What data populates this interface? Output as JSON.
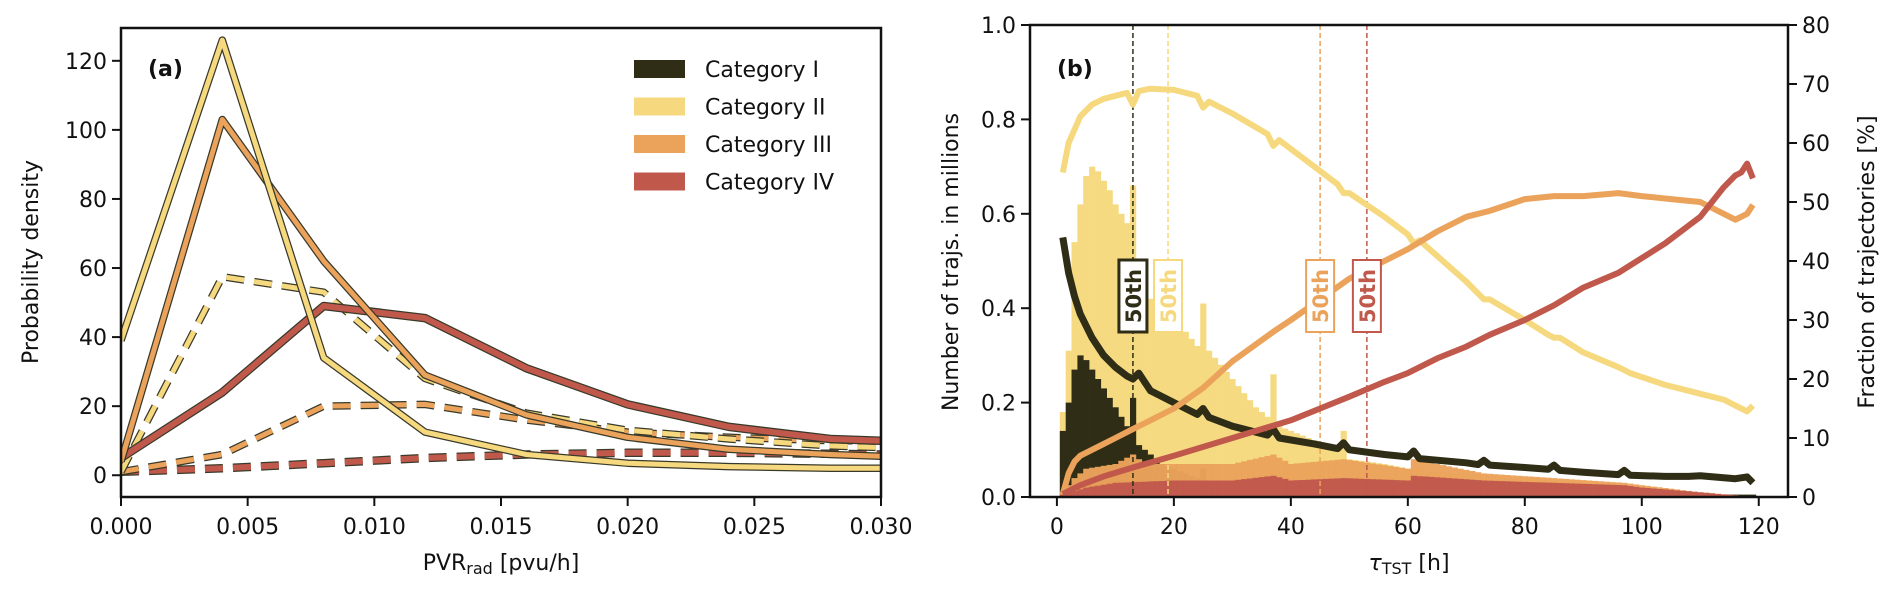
{
  "colors": {
    "cat1": "#2f2d15",
    "cat2": "#f6d97e",
    "cat3": "#eba35c",
    "cat4": "#c0594c",
    "axis": "#111111"
  },
  "chart_data": [
    {
      "panel": "a",
      "type": "line",
      "panel_label": "(a)",
      "xlabel_main": "PVR",
      "xlabel_sub": "rad",
      "xlabel_unit": " [pvu/h]",
      "ylabel": "Probability density",
      "xlim": [
        0.0,
        0.03
      ],
      "ylim": [
        -6.3,
        129.5
      ],
      "xticks": [
        0.0,
        0.005,
        0.01,
        0.015,
        0.02,
        0.025,
        0.03
      ],
      "xtick_labels": [
        "0.000",
        "0.005",
        "0.010",
        "0.015",
        "0.020",
        "0.025",
        "0.030"
      ],
      "yticks": [
        0,
        20,
        40,
        60,
        80,
        100,
        120
      ],
      "ytick_labels": [
        "0",
        "20",
        "40",
        "60",
        "80",
        "100",
        "120"
      ],
      "grid": false,
      "legend": {
        "placement": "top-right",
        "entries": [
          {
            "label": "Category I",
            "color_key": "cat1"
          },
          {
            "label": "Category II",
            "color_key": "cat2"
          },
          {
            "label": "Category III",
            "color_key": "cat3"
          },
          {
            "label": "Category IV",
            "color_key": "cat4"
          }
        ]
      },
      "series": [
        {
          "name": "Category II (solid)",
          "color_key": "cat2",
          "style": "solid",
          "x": [
            0.0,
            0.004,
            0.008,
            0.012,
            0.016,
            0.02,
            0.024,
            0.028,
            0.03
          ],
          "y": [
            39,
            126,
            34,
            12.5,
            6,
            3.5,
            2.5,
            2,
            2
          ]
        },
        {
          "name": "Category III (solid)",
          "color_key": "cat3",
          "style": "solid",
          "x": [
            0.0,
            0.004,
            0.008,
            0.012,
            0.016,
            0.02,
            0.024,
            0.028,
            0.03
          ],
          "y": [
            4,
            103,
            62,
            29,
            17.5,
            11,
            7.5,
            6,
            5.5
          ]
        },
        {
          "name": "Category IV (solid)",
          "color_key": "cat4",
          "style": "solid",
          "x": [
            0.0,
            0.004,
            0.008,
            0.012,
            0.016,
            0.02,
            0.024,
            0.028,
            0.03
          ],
          "y": [
            5,
            24,
            49,
            45.5,
            31,
            20.5,
            14,
            10.5,
            10
          ]
        },
        {
          "name": "Category II (dashed)",
          "color_key": "cat2",
          "style": "dashed",
          "x": [
            0.0,
            0.004,
            0.008,
            0.012,
            0.016,
            0.02,
            0.024,
            0.028,
            0.03
          ],
          "y": [
            1,
            57.5,
            53,
            28,
            18,
            13,
            10.5,
            8.5,
            8
          ]
        },
        {
          "name": "Category III (dashed)",
          "color_key": "cat3",
          "style": "dashed",
          "x": [
            0.0,
            0.004,
            0.008,
            0.012,
            0.016,
            0.02,
            0.024,
            0.028,
            0.03
          ],
          "y": [
            1,
            6,
            20,
            20.5,
            16,
            12.5,
            11,
            10,
            10
          ]
        },
        {
          "name": "Category IV (dashed)",
          "color_key": "cat4",
          "style": "dashed",
          "x": [
            0.0,
            0.004,
            0.008,
            0.012,
            0.016,
            0.02,
            0.024,
            0.028,
            0.03
          ],
          "y": [
            1,
            2,
            3.5,
            5,
            6,
            6.5,
            6.5,
            6.2,
            6
          ]
        }
      ]
    },
    {
      "panel": "b",
      "type": "bar+line",
      "panel_label": "(b)",
      "xlabel_main": "τ",
      "xlabel_sub": "TST",
      "xlabel_unit": " [h]",
      "ylabel_left": "Number of trajs. in millions",
      "ylabel_right": "Fraction of trajectories [%]",
      "xlim": [
        -4.6,
        125
      ],
      "ylim_left": [
        0.0,
        1.0
      ],
      "ylim_right": [
        0,
        80
      ],
      "xticks": [
        0,
        20,
        40,
        60,
        80,
        100,
        120
      ],
      "xtick_labels": [
        "0",
        "20",
        "40",
        "60",
        "80",
        "100",
        "120"
      ],
      "yticks_left": [
        0.0,
        0.2,
        0.4,
        0.6,
        0.8,
        1.0
      ],
      "ytick_labels_left": [
        "0.0",
        "0.2",
        "0.4",
        "0.6",
        "0.8",
        "1.0"
      ],
      "yticks_right": [
        0,
        10,
        20,
        30,
        40,
        50,
        60,
        70,
        80
      ],
      "ytick_labels_right": [
        "0",
        "10",
        "20",
        "30",
        "40",
        "50",
        "60",
        "70",
        "80"
      ],
      "grid": false,
      "percentile_markers": [
        {
          "label": "50th",
          "x": 13,
          "color_key": "cat1"
        },
        {
          "label": "50th",
          "x": 19,
          "color_key": "cat2"
        },
        {
          "label": "50th",
          "x": 45,
          "color_key": "cat3"
        },
        {
          "label": "50th",
          "x": 53,
          "color_key": "cat4"
        }
      ],
      "histograms": {
        "bin_width_h": 1,
        "bin_start_h": 1,
        "cat2_total_millions_anchor": {
          "x": [
            1,
            2,
            3,
            4,
            5,
            6,
            7,
            8,
            9,
            10,
            11,
            12,
            13,
            14,
            15,
            16,
            17,
            18,
            19,
            20,
            22,
            24,
            25,
            26,
            28,
            30,
            32,
            34,
            36,
            37,
            38,
            40,
            44,
            48,
            49,
            50,
            56,
            60,
            70,
            80,
            90,
            100,
            110,
            119
          ],
          "y": [
            0.18,
            0.31,
            0.54,
            0.62,
            0.68,
            0.7,
            0.69,
            0.67,
            0.65,
            0.62,
            0.6,
            0.58,
            0.66,
            0.5,
            0.44,
            0.42,
            0.41,
            0.4,
            0.39,
            0.38,
            0.35,
            0.32,
            0.41,
            0.31,
            0.28,
            0.25,
            0.22,
            0.19,
            0.17,
            0.26,
            0.15,
            0.14,
            0.12,
            0.1,
            0.14,
            0.08,
            0.07,
            0.06,
            0.05,
            0.04,
            0.03,
            0.02,
            0.01,
            0.0
          ]
        },
        "cat1_millions_anchor": {
          "x": [
            1,
            2,
            3,
            4,
            5,
            6,
            7,
            8,
            9,
            10,
            11,
            12,
            13,
            14,
            15,
            16,
            17,
            18,
            20,
            22,
            24,
            25,
            26,
            30,
            40
          ],
          "y": [
            0.14,
            0.2,
            0.27,
            0.3,
            0.29,
            0.27,
            0.25,
            0.23,
            0.21,
            0.19,
            0.17,
            0.15,
            0.21,
            0.11,
            0.1,
            0.09,
            0.08,
            0.07,
            0.06,
            0.05,
            0.04,
            0.06,
            0.03,
            0.02,
            0.005
          ]
        },
        "cat3_millions_anchor": {
          "x": [
            1,
            3,
            5,
            10,
            13,
            15,
            20,
            30,
            37,
            40,
            49,
            60,
            61,
            73,
            85,
            97,
            100,
            110,
            119
          ],
          "y": [
            0.01,
            0.04,
            0.06,
            0.07,
            0.09,
            0.07,
            0.07,
            0.07,
            0.09,
            0.07,
            0.08,
            0.06,
            0.08,
            0.05,
            0.04,
            0.03,
            0.025,
            0.01,
            0.0
          ]
        },
        "cat4_millions_anchor": {
          "x": [
            1,
            5,
            10,
            20,
            30,
            37,
            40,
            49,
            60,
            61,
            73,
            85,
            97,
            100,
            110,
            119
          ],
          "y": [
            0.005,
            0.02,
            0.03,
            0.035,
            0.035,
            0.045,
            0.035,
            0.04,
            0.035,
            0.045,
            0.035,
            0.03,
            0.025,
            0.02,
            0.01,
            0.0
          ]
        }
      },
      "fraction_lines_percent": [
        {
          "name": "Category I fraction",
          "color_key": "cat1",
          "x": [
            1,
            2,
            3,
            4,
            6,
            8,
            10,
            12,
            13,
            14,
            16,
            20,
            24,
            25,
            26,
            30,
            36,
            37,
            38,
            44,
            48,
            49,
            50,
            56,
            60,
            61,
            62,
            70,
            72,
            73,
            74,
            80,
            84,
            85,
            86,
            90,
            96,
            97,
            98,
            104,
            108,
            110,
            116,
            118,
            119
          ],
          "y": [
            44,
            38,
            34,
            31,
            27,
            24,
            22,
            20.5,
            20,
            21,
            18,
            16,
            14,
            15,
            13.5,
            12,
            10.5,
            11.5,
            10,
            9,
            8.2,
            9.2,
            8,
            7.2,
            6.8,
            7.8,
            6.5,
            5.8,
            5.5,
            6.2,
            5.4,
            5,
            4.7,
            5.4,
            4.5,
            4.2,
            3.8,
            4.5,
            3.7,
            3.5,
            3.5,
            3.6,
            3.1,
            3.4,
            2.4
          ]
        },
        {
          "name": "Category II fraction",
          "color_key": "cat2",
          "x": [
            1,
            2,
            4,
            6,
            8,
            10,
            12,
            13,
            14,
            16,
            20,
            24,
            25,
            26,
            30,
            36,
            37,
            38,
            44,
            48,
            49,
            50,
            56,
            60,
            61,
            62,
            70,
            72,
            73,
            74,
            80,
            84,
            85,
            86,
            90,
            96,
            97,
            98,
            104,
            108,
            110,
            114,
            116,
            118,
            119
          ],
          "y": [
            55,
            60,
            64.5,
            66.5,
            67.5,
            68,
            68.5,
            66.5,
            68.8,
            69.2,
            69,
            68,
            66,
            67,
            65,
            61.5,
            59.5,
            60.5,
            56,
            53,
            51.5,
            51.5,
            47.5,
            44.5,
            43,
            43.5,
            36.5,
            34.5,
            33.5,
            33.5,
            30,
            27.5,
            27,
            27,
            24.5,
            22,
            21.5,
            21,
            19,
            18,
            17.5,
            16.5,
            15.5,
            14.5,
            15.5
          ]
        },
        {
          "name": "Category III fraction",
          "color_key": "cat3",
          "x": [
            1,
            2,
            3,
            4,
            6,
            8,
            10,
            13,
            16,
            20,
            25,
            30,
            37,
            40,
            45,
            50,
            56,
            60,
            65,
            70,
            74,
            80,
            85,
            90,
            96,
            100,
            105,
            110,
            114,
            116,
            118,
            119
          ],
          "y": [
            0.5,
            4,
            6,
            7,
            8,
            9,
            10,
            11.5,
            13,
            15,
            18.5,
            23,
            28,
            30,
            33.5,
            37,
            40,
            42,
            45,
            47.5,
            48.5,
            50.5,
            51,
            51,
            51.5,
            51,
            50.5,
            50,
            48,
            47,
            48,
            49.5
          ]
        },
        {
          "name": "Category IV fraction",
          "color_key": "cat4",
          "x": [
            1,
            4,
            8,
            13,
            20,
            25,
            30,
            40,
            45,
            50,
            56,
            60,
            65,
            70,
            74,
            80,
            85,
            90,
            96,
            100,
            104,
            108,
            110,
            112,
            114,
            116,
            117,
            118,
            119
          ],
          "y": [
            0.5,
            2,
            3.5,
            5,
            7,
            8.5,
            10,
            13,
            15,
            17,
            19.5,
            21,
            23.5,
            25.5,
            27.5,
            30,
            32.5,
            35.5,
            38,
            40.5,
            43,
            46,
            47.5,
            50,
            52.5,
            54.5,
            55,
            56.5,
            54
          ]
        }
      ]
    }
  ]
}
